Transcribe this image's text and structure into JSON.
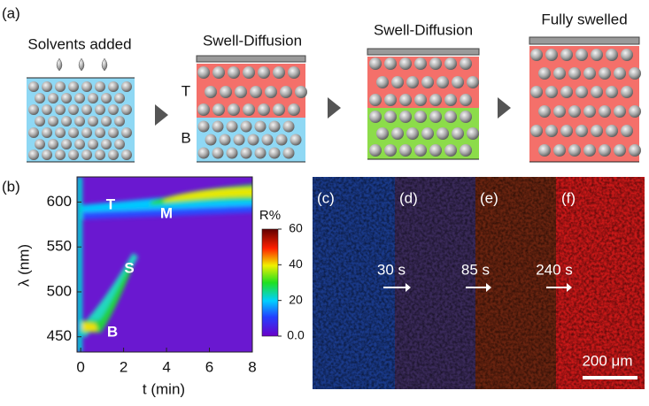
{
  "panel_a": {
    "label": "(a)",
    "steps": [
      {
        "title": "Solvents added"
      },
      {
        "title": "Swell-Diffusion",
        "layers": [
          "T",
          "B"
        ]
      },
      {
        "title": "Swell-Diffusion"
      },
      {
        "title": "Fully swelled"
      }
    ]
  },
  "panel_b": {
    "label": "(b)",
    "xlabel": "t (min)",
    "ylabel": "λ (nm)",
    "xlim": [
      -0.17,
      8
    ],
    "xticks": [
      0,
      2,
      4,
      6,
      8
    ],
    "ylim": [
      433,
      628
    ],
    "yticks": [
      450,
      500,
      550,
      600
    ],
    "annotations": [
      "T",
      "M",
      "S",
      "B"
    ],
    "colorbar": {
      "title": "R%",
      "lim": [
        0,
        60
      ],
      "ticks": [
        {
          "value": 0,
          "label": "0.0"
        },
        20,
        40,
        60
      ]
    }
  },
  "panels_cf": [
    {
      "label": "(c)"
    },
    {
      "label": "(d)",
      "time": "30 s"
    },
    {
      "label": "(e)",
      "time": "85 s"
    },
    {
      "label": "(f)",
      "time": "240 s"
    }
  ],
  "scale_bar": "200 μm"
}
